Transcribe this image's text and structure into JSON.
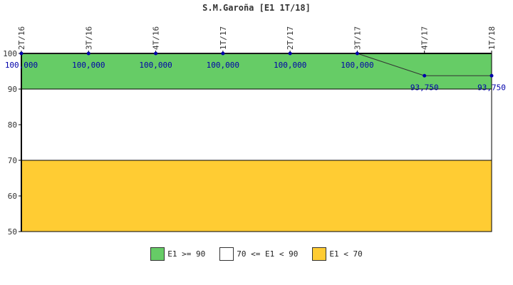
{
  "chart_data": {
    "type": "line",
    "title": "S.M.Garoña [E1 1T/18]",
    "xlabel": "",
    "ylabel": "",
    "categories": [
      "2T/16",
      "3T/16",
      "4T/16",
      "1T/17",
      "2T/17",
      "3T/17",
      "4T/17",
      "1T/18"
    ],
    "series": [
      {
        "values": [
          100,
          100,
          100,
          100,
          100,
          100,
          93.75,
          93.75
        ],
        "labels": [
          "100,000",
          "100,000",
          "100,000",
          "100,000",
          "100,000",
          "100,000",
          "93,750",
          "93,750"
        ],
        "color": "#0000aa"
      }
    ],
    "ylim": [
      50,
      100
    ],
    "yticks": [
      "50",
      "60",
      "70",
      "80",
      "90",
      "100"
    ],
    "grid": false,
    "bands": [
      {
        "from": 90,
        "to": 100,
        "color": "#66cc66",
        "legend": "E1 >= 90"
      },
      {
        "from": 70,
        "to": 90,
        "color": "#ffffff",
        "legend": "70 <= E1 < 90"
      },
      {
        "from": 50,
        "to": 70,
        "color": "#ffcc33",
        "legend": "E1 < 70"
      }
    ],
    "legend_position": "bottom"
  }
}
